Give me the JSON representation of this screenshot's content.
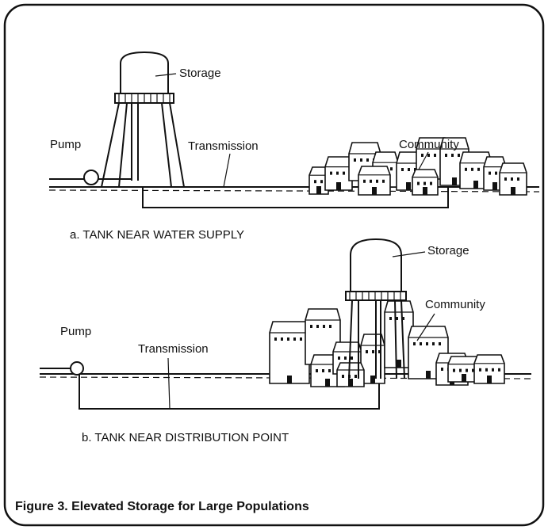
{
  "panels": [
    {
      "labels": {
        "storage": "Storage",
        "community": "Community",
        "pump": "Pump",
        "transmission": "Transmission"
      },
      "caption": "a. TANK NEAR WATER SUPPLY"
    },
    {
      "labels": {
        "storage": "Storage",
        "community": "Community",
        "pump": "Pump",
        "transmission": "Transmission"
      },
      "caption": "b. TANK NEAR DISTRIBUTION POINT"
    }
  ],
  "figure_caption": "Figure 3. Elevated Storage for Large Populations"
}
